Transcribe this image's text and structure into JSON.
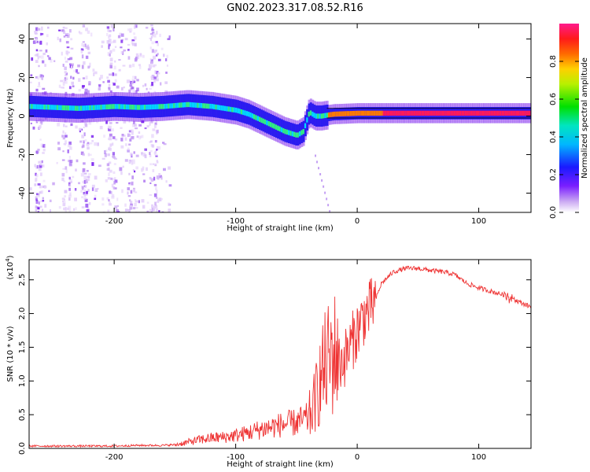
{
  "title": "GN02.2023.317.08.52.R16",
  "chart_data": [
    {
      "type": "heatmap",
      "xlabel": "Height of straight line (km)",
      "ylabel": "Frequency (Hz)",
      "xlim": [
        -270,
        143
      ],
      "ylim": [
        -50,
        48
      ],
      "x_ticks": [
        -200,
        -100,
        0,
        100
      ],
      "y_ticks": [
        -40,
        -20,
        0,
        20,
        40
      ],
      "x_tick_labels": [
        "-200",
        "-100",
        "0",
        "100"
      ],
      "y_tick_labels": [
        "-40",
        "-20",
        "0",
        "20",
        "40"
      ],
      "colorbar": {
        "label": "Normalized spectral amplitude",
        "range": [
          0,
          1
        ],
        "ticks": [
          0.0,
          0.2,
          0.4,
          0.6,
          0.8
        ],
        "tick_labels": [
          "0.0",
          "0.2",
          "0.4",
          "0.6",
          "0.8"
        ],
        "colormap": "rainbow (violet-blue-cyan-green-yellow-orange-red-magenta)"
      },
      "ridge": {
        "description": "main spectral line",
        "x": [
          -270,
          -250,
          -230,
          -200,
          -180,
          -160,
          -140,
          -120,
          -100,
          -90,
          -80,
          -70,
          -60,
          -50,
          -45,
          -40,
          -35,
          -30,
          -20,
          0,
          20,
          50,
          80,
          100,
          143
        ],
        "y": [
          5,
          4.5,
          4,
          5,
          4.5,
          5,
          6,
          5,
          3,
          1,
          -2,
          -5,
          -8,
          -10,
          -8,
          2,
          0,
          0,
          1,
          1.5,
          1.5,
          1.5,
          1.5,
          1.5,
          1.5
        ]
      }
    },
    {
      "type": "line",
      "xlabel": "Height of straight line (km)",
      "ylabel": "SNR (10 * v/v)",
      "y_scale_label": "(x10",
      "y_scale_exp": "4",
      "xlim": [
        -270,
        143
      ],
      "ylim": [
        0,
        2.8
      ],
      "x_ticks": [
        -200,
        -100,
        0,
        100
      ],
      "y_ticks": [
        0.0,
        0.5,
        1.0,
        1.5,
        2.0,
        2.5
      ],
      "x_tick_labels": [
        "-200",
        "-100",
        "0",
        "100"
      ],
      "y_tick_labels": [
        "0.0",
        "0.5",
        "1.0",
        "1.5",
        "2.0",
        "2.5"
      ],
      "color": "#ee3333",
      "series": [
        {
          "x": [
            -270,
            -250,
            -230,
            -200,
            -180,
            -160,
            -150,
            -140,
            -130,
            -120,
            -110,
            -100,
            -90,
            -80,
            -70,
            -60,
            -50,
            -40,
            -35,
            -30,
            -25,
            -20,
            -15,
            -10,
            -5,
            0,
            5,
            10,
            15,
            20,
            30,
            40,
            50,
            60,
            70,
            80,
            90,
            100,
            110,
            120,
            125,
            130,
            140,
            143
          ],
          "values": [
            0.02,
            0.02,
            0.02,
            0.02,
            0.03,
            0.03,
            0.04,
            0.07,
            0.1,
            0.12,
            0.13,
            0.15,
            0.18,
            0.22,
            0.25,
            0.28,
            0.3,
            0.35,
            0.6,
            0.9,
            1.1,
            1.2,
            1.25,
            1.35,
            1.55,
            1.75,
            1.95,
            2.05,
            2.2,
            2.45,
            2.62,
            2.67,
            2.67,
            2.64,
            2.62,
            2.58,
            2.45,
            2.38,
            2.33,
            2.28,
            2.3,
            2.2,
            2.12,
            2.1
          ]
        }
      ]
    }
  ]
}
